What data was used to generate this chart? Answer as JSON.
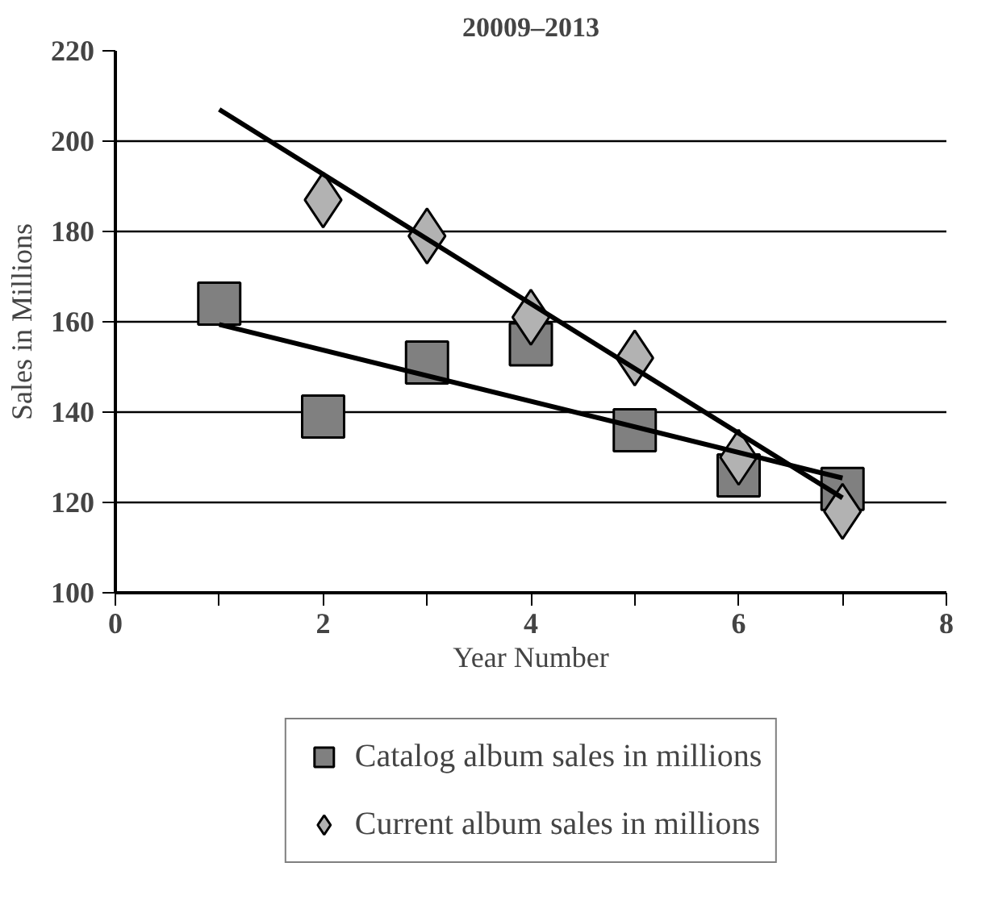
{
  "chart_data": {
    "type": "scatter",
    "title": "20009–2013",
    "xlabel": "Year Number",
    "ylabel": "Sales in Millions",
    "x": [
      1,
      2,
      3,
      4,
      5,
      6,
      7
    ],
    "series": [
      {
        "name": "Catalog album sales in millions",
        "color": "#808080",
        "marker": "square",
        "values": [
          164,
          139,
          151,
          155,
          136,
          126,
          123
        ]
      },
      {
        "name": "Current album sales in millions",
        "color": "#b2b2b2",
        "marker": "diamond",
        "values": [
          187,
          179,
          161,
          152,
          130,
          118
        ],
        "x": [
          2,
          3,
          4,
          5,
          6,
          7
        ]
      },
      {
        "type": "line",
        "color": "#000000",
        "x": [
          1,
          7
        ],
        "values": [
          159.4,
          125.4
        ]
      },
      {
        "type": "line",
        "color": "#000000",
        "x": [
          1,
          7
        ],
        "values": [
          207,
          121
        ]
      }
    ],
    "xlim": [
      0,
      8
    ],
    "ylim": [
      100,
      220
    ],
    "xticks": [
      0,
      {
        "value": 1,
        "label": null
      },
      2,
      {
        "value": 3,
        "label": null
      },
      4,
      {
        "value": 5,
        "label": null
      },
      6,
      {
        "value": 7,
        "label": null
      },
      8
    ],
    "yticks": [
      100,
      120,
      140,
      160,
      180,
      200,
      220
    ],
    "grid": "y",
    "legend": "bottom"
  }
}
